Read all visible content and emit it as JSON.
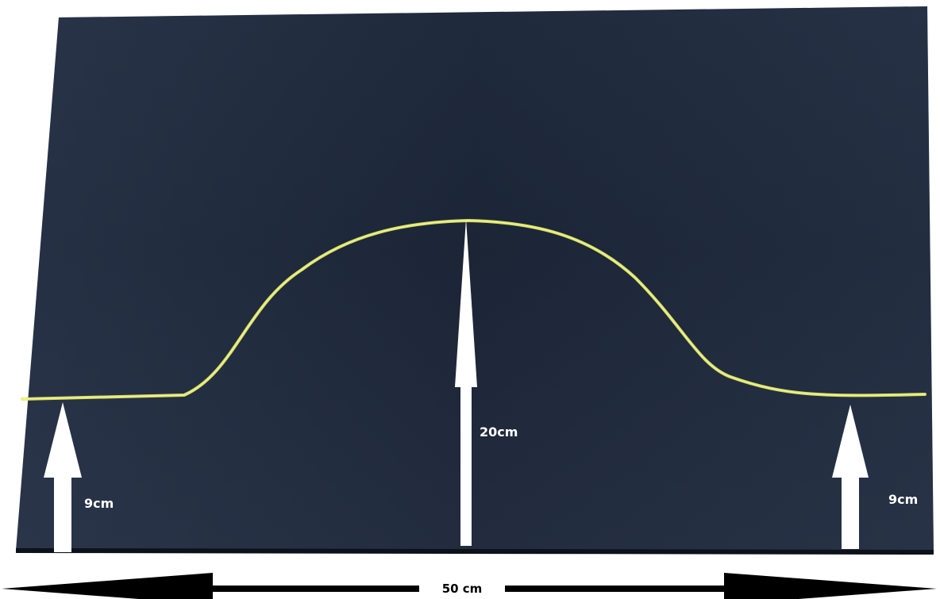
{
  "annotations": {
    "left_height": "9cm",
    "center_height": "20cm",
    "right_height": "9cm",
    "total_width": "50 cm"
  },
  "colors": {
    "paper": "#1c2637",
    "curve": "#e4ec6a",
    "arrows": "#ffffff",
    "width_arrow": "#000000",
    "background": "#ffffff"
  }
}
